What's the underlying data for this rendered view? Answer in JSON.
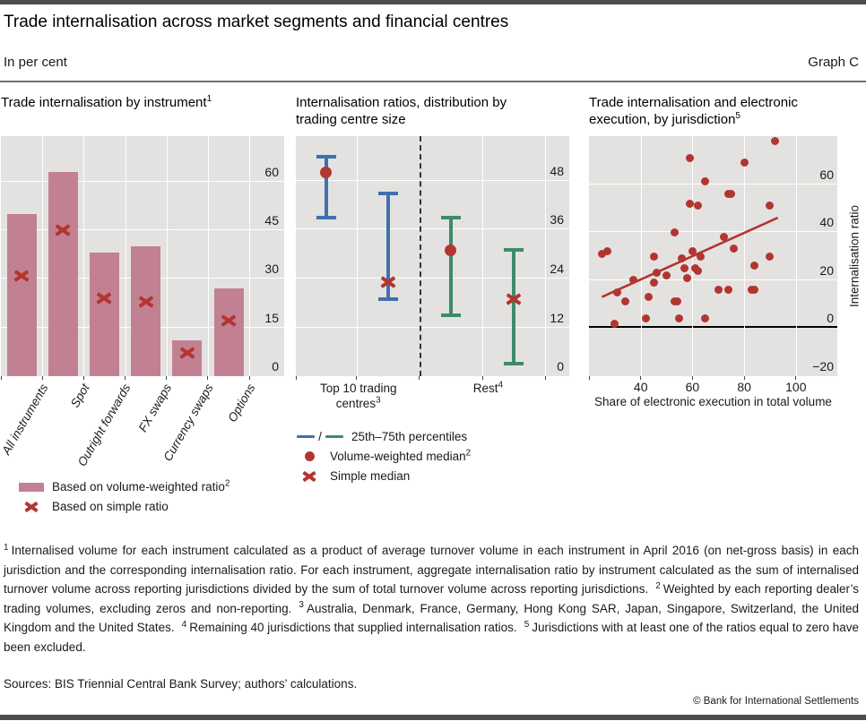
{
  "header": {
    "title": "Trade internalisation across market segments and financial centres",
    "subtitle_left": "In per cent",
    "subtitle_right": "Graph C"
  },
  "colors": {
    "bar_pink": "#c28193",
    "marker_red": "#b33530",
    "top10_blue": "#4070ad",
    "rest_green": "#3e8a6c",
    "plot_background": "#e3e2e0",
    "gridline": "#ffffff",
    "zero_line": "#000000",
    "window_bar": "#4c4c4c"
  },
  "chart_data": [
    {
      "type": "bar",
      "title": {
        "lines": [
          "Trade internalisation by instrument"
        ],
        "sup": "1"
      },
      "categories": [
        "All instruments",
        "Spot",
        "Outright forwards",
        "FX swaps",
        "Currency swaps",
        "Options"
      ],
      "series": [
        {
          "name": "Based on volume-weighted ratio",
          "sup": "2",
          "marker": "bar",
          "values": [
            50,
            63,
            38,
            40,
            11,
            27
          ]
        },
        {
          "name": "Based on simple ratio",
          "sup": "",
          "marker": "x",
          "values": [
            31,
            45,
            24,
            23,
            7,
            17
          ]
        }
      ],
      "ylim": [
        0,
        74
      ],
      "yticks": [
        0,
        15,
        30,
        45,
        60
      ],
      "legend": [
        {
          "symbol": "swatch",
          "label": "Based on volume-weighted ratio",
          "sup": "2"
        },
        {
          "symbol": "x",
          "label": "Based on simple ratio",
          "sup": ""
        }
      ]
    },
    {
      "type": "whisker",
      "title": {
        "lines": [
          "Internalisation ratios, distribution by",
          "trading centre size"
        ],
        "sup": ""
      },
      "groups": [
        {
          "lines": [
            "Top 10 trading",
            "centres"
          ],
          "sup": "3"
        },
        {
          "lines": [
            "Rest"
          ],
          "sup": "4"
        }
      ],
      "items": [
        {
          "group": "Top 10 trading centres",
          "color": "top10_blue",
          "p25": 39,
          "p75": 54,
          "median": 50,
          "median_marker": "volume-weighted"
        },
        {
          "group": "Top 10 trading centres",
          "color": "top10_blue",
          "p25": 19,
          "p75": 45,
          "median": 23,
          "median_marker": "simple"
        },
        {
          "group": "Rest",
          "color": "rest_green",
          "p25": 15,
          "p75": 39,
          "median": 31,
          "median_marker": "volume-weighted"
        },
        {
          "group": "Rest",
          "color": "rest_green",
          "p25": 3,
          "p75": 31,
          "median": 19,
          "median_marker": "simple"
        }
      ],
      "ylim": [
        0,
        59
      ],
      "yticks": [
        0,
        12,
        24,
        36,
        48
      ],
      "legend": [
        {
          "symbol": "dual-line",
          "label": "25th–75th percentiles",
          "sup": ""
        },
        {
          "symbol": "dot",
          "label": "Volume-weighted median",
          "sup": "2"
        },
        {
          "symbol": "x",
          "label": "Simple median",
          "sup": ""
        }
      ]
    },
    {
      "type": "scatter",
      "title": {
        "lines": [
          "Trade internalisation and electronic",
          "execution, by jurisdiction"
        ],
        "sup": "5"
      },
      "xlabel": "Share of electronic execution in total volume",
      "ylabel": "Internalisation ratio",
      "xlim": [
        20,
        116
      ],
      "ylim": [
        -20,
        80
      ],
      "xticks": [
        40,
        60,
        80,
        100
      ],
      "yticks": [
        -20,
        0,
        20,
        40,
        60
      ],
      "zero_line": 0,
      "points": [
        [
          25,
          31
        ],
        [
          27,
          32
        ],
        [
          30,
          2
        ],
        [
          31,
          15
        ],
        [
          34,
          11
        ],
        [
          37,
          20
        ],
        [
          42,
          4
        ],
        [
          43,
          13
        ],
        [
          45,
          19
        ],
        [
          45,
          30
        ],
        [
          46,
          23
        ],
        [
          50,
          22
        ],
        [
          53,
          11
        ],
        [
          53,
          40
        ],
        [
          54,
          11
        ],
        [
          55,
          4
        ],
        [
          56,
          29
        ],
        [
          57,
          25
        ],
        [
          58,
          21
        ],
        [
          59,
          52
        ],
        [
          59,
          71
        ],
        [
          60,
          32
        ],
        [
          61,
          25
        ],
        [
          62,
          24
        ],
        [
          62,
          51
        ],
        [
          63,
          30
        ],
        [
          65,
          4
        ],
        [
          65,
          61
        ],
        [
          70,
          16
        ],
        [
          72,
          38
        ],
        [
          74,
          16
        ],
        [
          74,
          56
        ],
        [
          75,
          56
        ],
        [
          76,
          33
        ],
        [
          80,
          69
        ],
        [
          83,
          16
        ],
        [
          84,
          16
        ],
        [
          84,
          26
        ],
        [
          90,
          30
        ],
        [
          90,
          51
        ],
        [
          92,
          78
        ]
      ],
      "trend": {
        "x1": 25,
        "y1": 13,
        "x2": 93,
        "y2": 46
      }
    }
  ],
  "footnotes": [
    {
      "sup": "1",
      "text": "Internalised volume for each instrument calculated as a product of average turnover volume in each instrument in April 2016 (on net-gross basis) in each jurisdiction and the corresponding internalisation ratio. For each instrument, aggregate internalisation ratio by instrument calculated as the sum of internalised turnover volume across reporting jurisdictions divided by the sum of total turnover volume across reporting jurisdictions."
    },
    {
      "sup": "2",
      "text": "Weighted by each reporting dealer’s trading volumes, excluding zeros and non-reporting."
    },
    {
      "sup": "3",
      "text": "Australia, Denmark, France, Germany, Hong Kong SAR, Japan, Singapore, Switzerland, the United Kingdom and the United States."
    },
    {
      "sup": "4",
      "text": "Remaining 40 jurisdictions that supplied internalisation ratios."
    },
    {
      "sup": "5",
      "text": "Jurisdictions with at least one of the ratios equal to zero have been excluded."
    }
  ],
  "sources": "Sources: BIS Triennial Central Bank Survey; authors’ calculations.",
  "copyright": "© Bank for International Settlements"
}
